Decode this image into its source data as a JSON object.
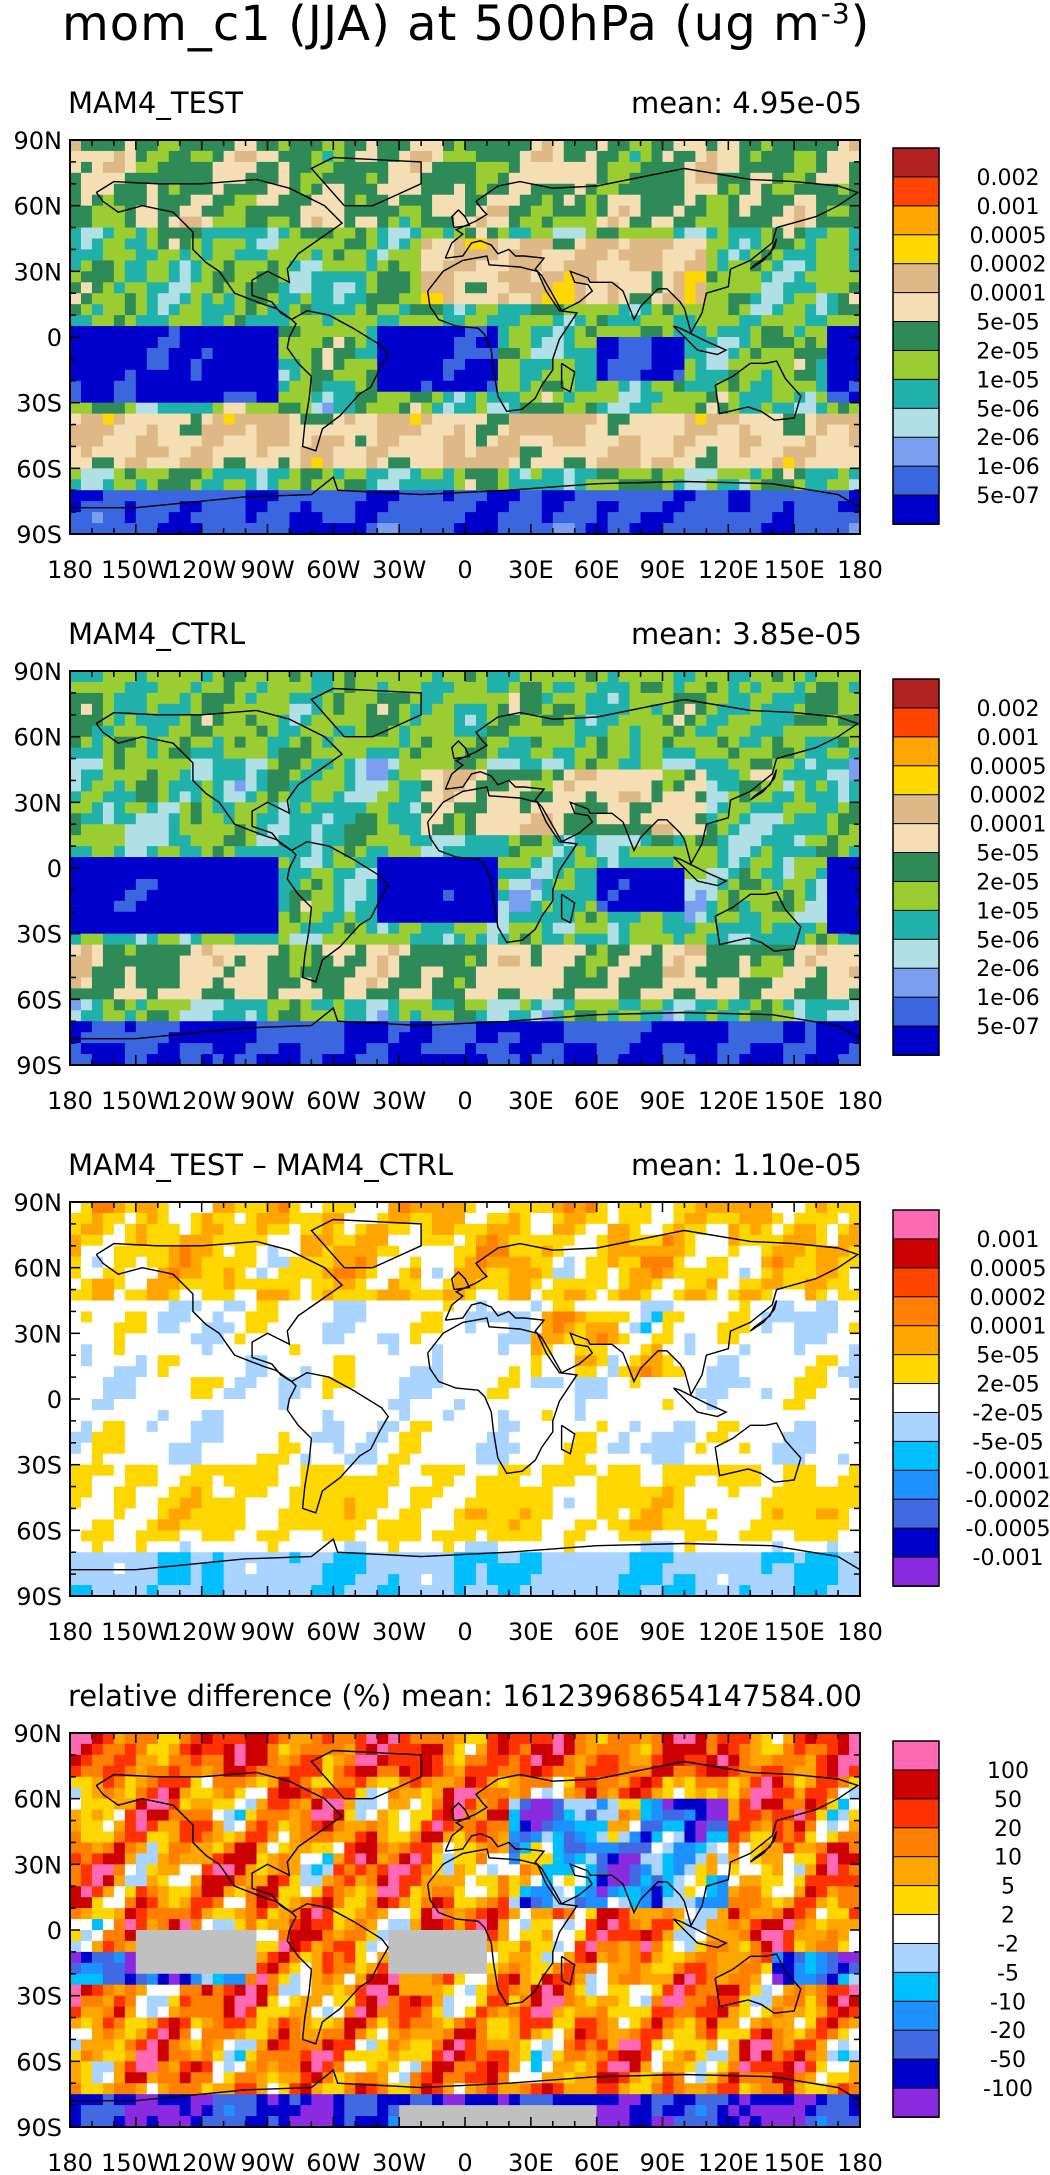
{
  "figure": {
    "title": "mom_c1 (JJA) at 500hPa (ug m",
    "title_superscript": "-3",
    "title_close": ")"
  },
  "colors": {
    "abs_scale": [
      "#0000cd",
      "#3a66e0",
      "#7b9ff0",
      "#b0e0e6",
      "#20b2aa",
      "#9acd32",
      "#2e8b57",
      "#f5deb3",
      "#deb887",
      "#ffd700",
      "#ffa500",
      "#ff4500",
      "#b22222"
    ],
    "diff_scale": [
      "#8a2be2",
      "#0000cd",
      "#4169e1",
      "#1e90ff",
      "#00bfff",
      "#a8d4ff",
      "#ffffff",
      "#ffd700",
      "#ffa500",
      "#ff7f00",
      "#ff4500",
      "#cc0000",
      "#ff69b4"
    ],
    "relative_scale": [
      "#8a2be2",
      "#0000cd",
      "#4169e1",
      "#1e90ff",
      "#00bfff",
      "#a8d4ff",
      "#ffffff",
      "#ffd700",
      "#ffa500",
      "#ff7f00",
      "#ff3300",
      "#cc0000",
      "#ff69b4"
    ]
  },
  "chart_data": [
    {
      "type": "heatmap",
      "title": "MAM4_TEST",
      "mean_label": "mean: 4.95e-05",
      "x_ticks": [
        "180",
        "150W",
        "120W",
        "90W",
        "60W",
        "30W",
        "0",
        "30E",
        "60E",
        "90E",
        "120E",
        "150E",
        "180"
      ],
      "y_ticks": [
        "90N",
        "60N",
        "30N",
        "0",
        "30S",
        "60S",
        "90S"
      ],
      "xlim": [
        -180,
        180
      ],
      "ylim": [
        -90,
        90
      ],
      "colorbar_labels": [
        "0.002",
        "0.001",
        "0.0005",
        "0.0002",
        "0.0001",
        "5e-05",
        "2e-05",
        "1e-05",
        "5e-06",
        "2e-06",
        "1e-06",
        "5e-07"
      ],
      "palette": "abs_scale",
      "pattern": "test"
    },
    {
      "type": "heatmap",
      "title": "MAM4_CTRL",
      "mean_label": "mean: 3.85e-05",
      "x_ticks": [
        "180",
        "150W",
        "120W",
        "90W",
        "60W",
        "30W",
        "0",
        "30E",
        "60E",
        "90E",
        "120E",
        "150E",
        "180"
      ],
      "y_ticks": [
        "90N",
        "60N",
        "30N",
        "0",
        "30S",
        "60S",
        "90S"
      ],
      "xlim": [
        -180,
        180
      ],
      "ylim": [
        -90,
        90
      ],
      "colorbar_labels": [
        "0.002",
        "0.001",
        "0.0005",
        "0.0002",
        "0.0001",
        "5e-05",
        "2e-05",
        "1e-05",
        "5e-06",
        "2e-06",
        "1e-06",
        "5e-07"
      ],
      "palette": "abs_scale",
      "pattern": "ctrl"
    },
    {
      "type": "heatmap",
      "title": "MAM4_TEST – MAM4_CTRL",
      "mean_label": "mean: 1.10e-05",
      "x_ticks": [
        "180",
        "150W",
        "120W",
        "90W",
        "60W",
        "30W",
        "0",
        "30E",
        "60E",
        "90E",
        "120E",
        "150E",
        "180"
      ],
      "y_ticks": [
        "90N",
        "60N",
        "30N",
        "0",
        "30S",
        "60S",
        "90S"
      ],
      "xlim": [
        -180,
        180
      ],
      "ylim": [
        -90,
        90
      ],
      "colorbar_labels": [
        "0.001",
        "0.0005",
        "0.0002",
        "0.0001",
        "5e-05",
        "2e-05",
        "-2e-05",
        "-5e-05",
        "-0.0001",
        "-0.0002",
        "-0.0005",
        "-0.001"
      ],
      "palette": "diff_scale",
      "pattern": "diff"
    },
    {
      "type": "heatmap",
      "title": "relative difference (%)",
      "mean_label": "mean: 16123968654147584.00",
      "x_ticks": [
        "180",
        "150W",
        "120W",
        "90W",
        "60W",
        "30W",
        "0",
        "30E",
        "60E",
        "90E",
        "120E",
        "150E",
        "180"
      ],
      "y_ticks": [
        "90N",
        "60N",
        "30N",
        "0",
        "30S",
        "60S",
        "90S"
      ],
      "xlim": [
        -180,
        180
      ],
      "ylim": [
        -90,
        90
      ],
      "colorbar_labels": [
        "100",
        "50",
        "20",
        "10",
        "5",
        "2",
        "-2",
        "-5",
        "-10",
        "-20",
        "-50",
        "-100"
      ],
      "palette": "relative_scale",
      "pattern": "rel"
    }
  ]
}
